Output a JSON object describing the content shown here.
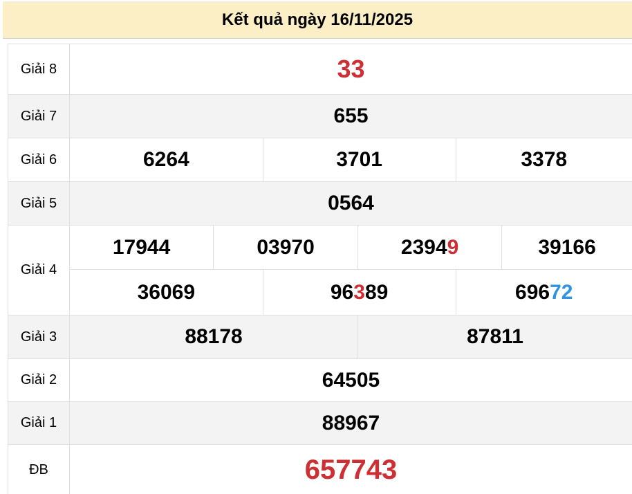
{
  "title": "Kết quả ngày 16/11/2025",
  "colors": {
    "red": "#cd2f34",
    "blue": "#2e94e2",
    "banner-bg": "#fcefc6",
    "row-alt": "#f3f3f3",
    "border": "#e0e0e0",
    "banner-border": "#cccccc",
    "text": "#000000"
  },
  "rows": {
    "g8": {
      "label": "Giải 8",
      "value": "33"
    },
    "g7": {
      "label": "Giải 7",
      "value": "655"
    },
    "g6": {
      "label": "Giải 6",
      "values": [
        "6264",
        "3701",
        "3378"
      ]
    },
    "g5": {
      "label": "Giải 5",
      "value": "0564"
    },
    "g4": {
      "label": "Giải 4",
      "row1": {
        "v0": "17944",
        "v1": "03970",
        "v2_main": "2394",
        "v2_red": "9",
        "v3": "39166"
      },
      "row2": {
        "v0": "36069",
        "v1_pre": "96",
        "v1_red": "3",
        "v1_post": "89",
        "v2_pre": "696",
        "v2_blue": "72"
      }
    },
    "g3": {
      "label": "Giải 3",
      "values": [
        "88178",
        "87811"
      ]
    },
    "g2": {
      "label": "Giải 2",
      "value": "64505"
    },
    "g1": {
      "label": "Giải 1",
      "value": "88967"
    },
    "db": {
      "label": "ĐB",
      "value": "657743"
    }
  }
}
